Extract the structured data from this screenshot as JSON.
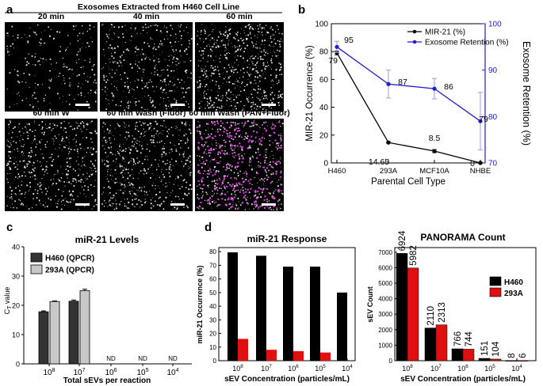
{
  "panels": {
    "a": {
      "label": "a",
      "title": "Exosomes Extracted from H460 Cell Line",
      "images": [
        {
          "caption": "20 min",
          "density": 220,
          "magenta": false
        },
        {
          "caption": "40 min",
          "density": 420,
          "magenta": false
        },
        {
          "caption": "60 min",
          "density": 620,
          "magenta": false
        },
        {
          "caption": "60 min W",
          "density": 520,
          "magenta": false
        },
        {
          "caption": "60 min Wash (Fluor)",
          "density": 560,
          "magenta": false
        },
        {
          "caption": "60 min Wash (PAN+Fluor)",
          "density": 500,
          "magenta": true
        }
      ],
      "colors": {
        "background": "#000000",
        "dot": "#ffffff",
        "magenta": "#e040e0"
      }
    },
    "b": {
      "label": "b"
    },
    "c": {
      "label": "c"
    },
    "d": {
      "label": "d"
    }
  },
  "chart_data": [
    {
      "id": "b",
      "type": "line",
      "categories": [
        "H460",
        "293A",
        "MCF10A",
        "NHBE"
      ],
      "xlabel": "Parental Cell Type",
      "ylabel": "MIR-21 Occurrence (%)",
      "ylim": [
        0,
        100
      ],
      "yticks": [
        0,
        20,
        40,
        60,
        80,
        100
      ],
      "y2label": "Exosome Retention (%)",
      "y2lim": [
        70,
        100
      ],
      "y2ticks": [
        70,
        80,
        90,
        100
      ],
      "legend_position": "top-right",
      "series": [
        {
          "name": "MIR-21 (%)",
          "axis": "left",
          "color": "#000000",
          "values": [
            79,
            14.65,
            8.5,
            0
          ],
          "errors": [
            1.5,
            0.5,
            1.2,
            0.3
          ],
          "labels": [
            "79",
            "14.65",
            "8.5",
            "0"
          ]
        },
        {
          "name": "Exosome Retention (%)",
          "axis": "right",
          "color": "#1f1fd0",
          "values": [
            95,
            87,
            86,
            79
          ],
          "errors": [
            1.2,
            3.0,
            2.2,
            6.2
          ],
          "labels": [
            "95",
            "87",
            "86",
            "79"
          ]
        }
      ]
    },
    {
      "id": "c",
      "type": "bar",
      "title": "miR-21 Levels",
      "categories": [
        "10^8",
        "10^7",
        "10^6",
        "10^5",
        "10^4"
      ],
      "xlabel": "Total sEVs per reaction",
      "ylabel": "C_T value",
      "ylim": [
        0,
        40
      ],
      "yticks": [
        0,
        10,
        20,
        30,
        40
      ],
      "legend_position": "top-left",
      "na_label": "ND",
      "series": [
        {
          "name": "H460 (QPCR)",
          "color": "#333333",
          "values": [
            17.8,
            21.4,
            null,
            null,
            null
          ],
          "errors": [
            0.3,
            0.4,
            0,
            0,
            0
          ]
        },
        {
          "name": "293A (QPCR)",
          "color": "#c8c8c8",
          "values": [
            21.3,
            25.0,
            null,
            null,
            null
          ],
          "errors": [
            0.2,
            0.5,
            0,
            0,
            0
          ]
        }
      ]
    },
    {
      "id": "d1",
      "type": "bar",
      "title": "miR-21 Response",
      "categories": [
        "10^8",
        "10^7",
        "10^6",
        "10^5",
        "10^4"
      ],
      "xlabel": "sEV Concentration (particles/mL)",
      "ylabel": "miR-21 Occurrence (%)",
      "ylim": [
        0,
        83
      ],
      "yticks": [
        0,
        10,
        20,
        30,
        40,
        50,
        60,
        70,
        80
      ],
      "series": [
        {
          "color": "#000000",
          "values": [
            79.5,
            77,
            69,
            69,
            50
          ]
        },
        {
          "color": "#e01010",
          "values": [
            16,
            8,
            7,
            6,
            null
          ]
        }
      ]
    },
    {
      "id": "d2",
      "type": "bar",
      "title": "PANORAMA Count",
      "categories": [
        "10^8",
        "10^7",
        "10^6",
        "10^5",
        "10^4"
      ],
      "xlabel": "sEV Concentration (particles/mL)",
      "ylabel": "sEV Count",
      "ylim": [
        0,
        7300
      ],
      "yticks": [
        0,
        1000,
        2000,
        3000,
        4000,
        5000,
        6000,
        7000
      ],
      "legend_position": "top-right",
      "series": [
        {
          "name": "H460",
          "color": "#000000",
          "values": [
            6924,
            2110,
            766,
            151,
            8
          ],
          "labels": [
            "6924",
            "2110",
            "766",
            "151",
            "8"
          ]
        },
        {
          "name": "293A",
          "color": "#e01010",
          "values": [
            5982,
            2313,
            744,
            104,
            6
          ],
          "labels": [
            "5982",
            "2313",
            "744",
            "104",
            "6"
          ]
        }
      ]
    }
  ]
}
